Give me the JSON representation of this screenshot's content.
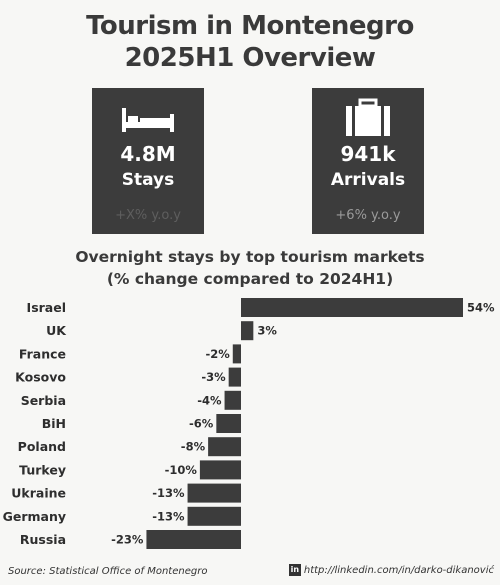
{
  "title_line1": "Tourism in Montenegro",
  "title_line2": "2025H1 Overview",
  "cards": {
    "stays": {
      "icon": "bed-icon",
      "value": "4.8M",
      "label": "Stays",
      "change": "+X% y.o.y"
    },
    "arrivals": {
      "icon": "suitcase-icon",
      "value": "941k",
      "label": "Arrivals",
      "change": "+6% y.o.y"
    }
  },
  "chart_data": {
    "type": "bar",
    "orientation": "horizontal",
    "title": "Overnight stays by top tourism markets",
    "subtitle": "(% change compared to 2024H1)",
    "categories": [
      "Israel",
      "UK",
      "France",
      "Kosovo",
      "Serbia",
      "BiH",
      "Poland",
      "Turkey",
      "Ukraine",
      "Germany",
      "Russia"
    ],
    "values": [
      54,
      3,
      -2,
      -3,
      -4,
      -6,
      -8,
      -10,
      -13,
      -13,
      -23
    ],
    "value_labels": [
      "54%",
      "3%",
      "-2%",
      "-3%",
      "-4%",
      "-6%",
      "-8%",
      "-10%",
      "-13%",
      "-13%",
      "-23%"
    ],
    "xlim": [
      -23,
      54
    ],
    "color": "#3c3c3c"
  },
  "footer": {
    "source": "Source: Statistical Office of Montenegro",
    "link_icon": "linkedin-icon",
    "link": "http://linkedin.com/in/darko-dikanović"
  }
}
